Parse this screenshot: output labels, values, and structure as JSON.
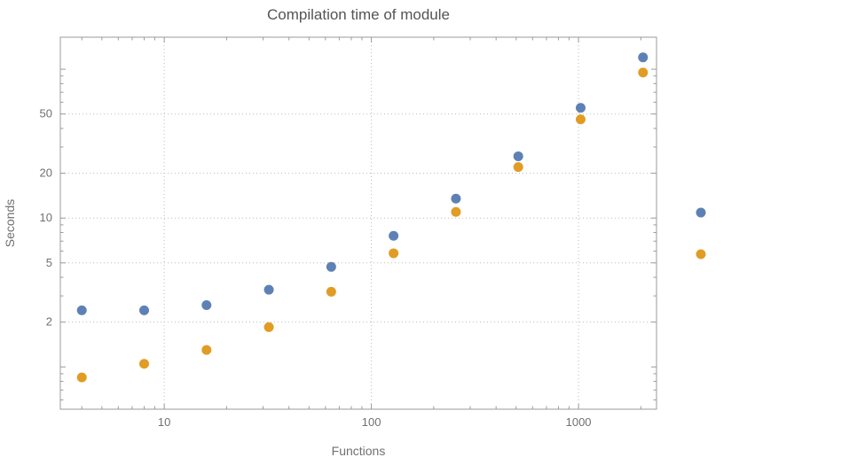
{
  "chart_data": {
    "type": "scatter",
    "title": "Compilation time of module",
    "xlabel": "Functions",
    "ylabel": "Seconds",
    "x_scale": "log",
    "y_scale": "log",
    "xlim": [
      3.15,
      2380
    ],
    "ylim": [
      0.52,
      164
    ],
    "grid": "dotted",
    "legend_position": "right-outside",
    "x": [
      4,
      8,
      16,
      32,
      64,
      128,
      256,
      512,
      1024,
      2048
    ],
    "series": [
      {
        "name": "blue",
        "color": "#5e81b5",
        "values": [
          2.4,
          2.4,
          2.6,
          3.3,
          4.7,
          7.6,
          13.5,
          26,
          55,
          120
        ]
      },
      {
        "name": "orange",
        "color": "#e19c24",
        "values": [
          0.85,
          1.05,
          1.3,
          1.85,
          3.2,
          5.8,
          11,
          22,
          46,
          95
        ]
      }
    ],
    "x_ticks": [
      {
        "value": 10,
        "label": "10"
      },
      {
        "value": 100,
        "label": "100"
      },
      {
        "value": 1000,
        "label": "1000"
      }
    ],
    "y_ticks": [
      {
        "value": 2,
        "label": "2"
      },
      {
        "value": 5,
        "label": "5"
      },
      {
        "value": 10,
        "label": "10"
      },
      {
        "value": 20,
        "label": "20"
      },
      {
        "value": 50,
        "label": "50"
      }
    ],
    "colors": {
      "background": "#ffffff",
      "frame": "#9b9b9b",
      "grid": "#bbbbbb",
      "title_text": "#545454",
      "label_text": "#707070",
      "tick_text": "#707070"
    }
  }
}
